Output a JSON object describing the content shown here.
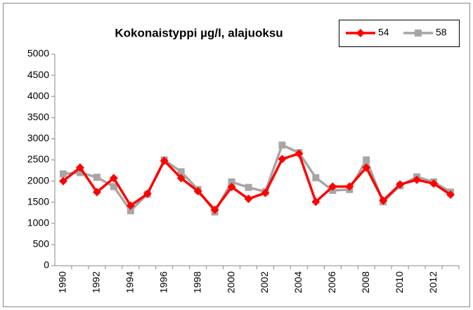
{
  "chart_data": {
    "type": "line",
    "title": "Kokonaistyppi µg/l, alajuoksu",
    "categories": [
      "1990",
      null,
      "1992",
      null,
      "1994",
      null,
      "1996",
      null,
      "1998",
      null,
      "2000",
      null,
      "2002",
      null,
      "2004",
      null,
      "2006",
      null,
      "2008",
      null,
      "2010",
      null,
      "2012",
      null
    ],
    "series": [
      {
        "name": "54",
        "color": "#ff0000",
        "marker": "diamond",
        "values": [
          2000,
          2320,
          1740,
          2070,
          1420,
          1700,
          2480,
          2070,
          1760,
          1320,
          1860,
          1580,
          1720,
          2520,
          2650,
          1510,
          1870,
          1870,
          2320,
          1540,
          1920,
          2030,
          1940,
          1680
        ]
      },
      {
        "name": "58",
        "color": "#a6a6a6",
        "marker": "square",
        "values": [
          2170,
          2200,
          2090,
          1870,
          1300,
          1690,
          2500,
          2220,
          1800,
          1270,
          1980,
          1850,
          1750,
          2850,
          2670,
          2080,
          1780,
          1800,
          2500,
          1510,
          1890,
          2100,
          1980,
          1740
        ]
      }
    ],
    "ylim": [
      0,
      5000
    ],
    "yticks": [
      0,
      500,
      1000,
      1500,
      2000,
      2500,
      3000,
      3500,
      4000,
      4500,
      5000
    ],
    "grid": false,
    "legend": "top-right"
  }
}
